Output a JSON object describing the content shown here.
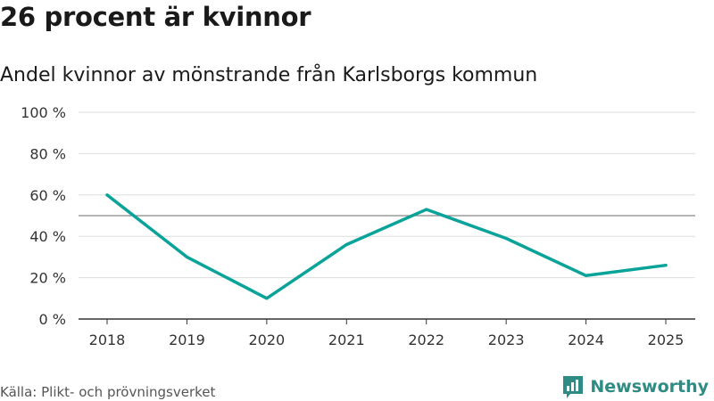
{
  "title": "26 procent är kvinnor",
  "subtitle": "Andel kvinnor av mönstrande från Karlsborgs kommun",
  "source": "Källa: Plikt- och prövningsverket",
  "brand": "Newsworthy",
  "colors": {
    "line": "#0aa399",
    "grid": "#dddddd",
    "reference": "#888888",
    "brand": "#2f8c84"
  },
  "chart_data": {
    "type": "line",
    "title": "26 procent är kvinnor",
    "xlabel": "",
    "ylabel": "",
    "categories": [
      "2018",
      "2019",
      "2020",
      "2021",
      "2022",
      "2023",
      "2024",
      "2025"
    ],
    "series": [
      {
        "name": "Andel kvinnor",
        "values": [
          60,
          30,
          10,
          36,
          53,
          39,
          21,
          26
        ]
      }
    ],
    "ylim": [
      0,
      100
    ],
    "yticks": [
      0,
      20,
      40,
      60,
      80,
      100
    ],
    "ytick_labels": [
      "0 %",
      "20 %",
      "40 %",
      "60 %",
      "80 %",
      "100 %"
    ],
    "reference_line": 50,
    "grid": true
  }
}
